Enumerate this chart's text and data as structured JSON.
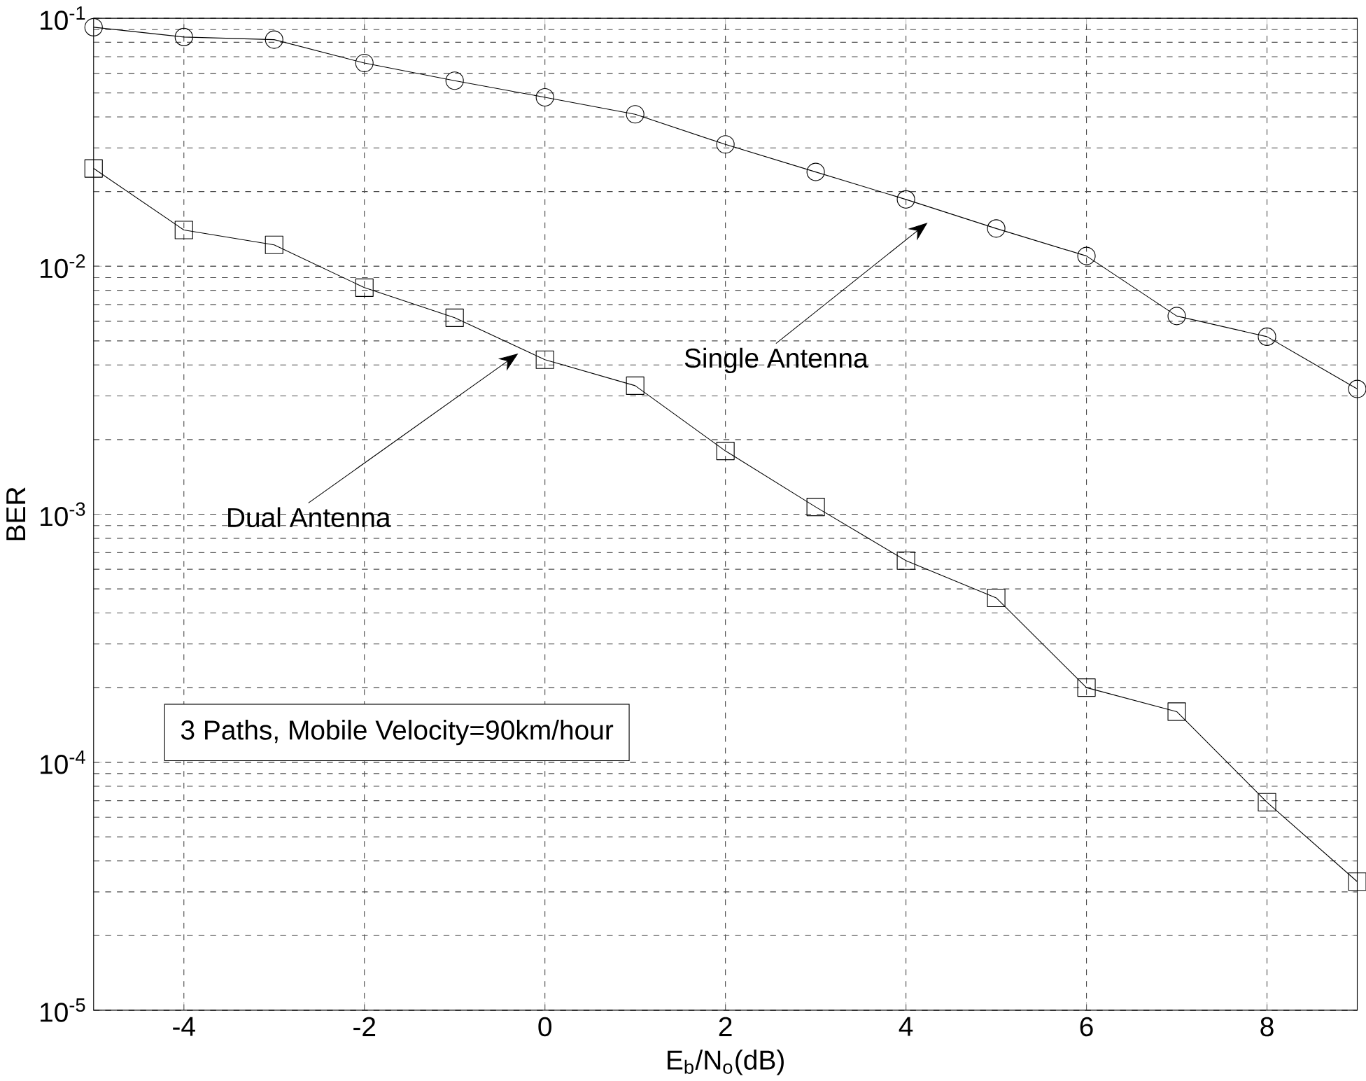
{
  "chart_data": {
    "type": "line",
    "xlabel": "E$_{b}$/N$_{o}$(dB)",
    "ylabel": "BER",
    "x": [
      -5,
      -4,
      -3,
      -2,
      -1,
      0,
      1,
      2,
      3,
      4,
      5,
      6,
      7,
      8,
      9
    ],
    "series": [
      {
        "color": "#000000",
        "marker": "circle",
        "values": [
          0.092,
          0.084,
          0.082,
          0.066,
          0.056,
          0.048,
          0.041,
          0.031,
          0.024,
          0.0186,
          0.0142,
          0.011,
          0.0063,
          0.0052,
          0.0032
        ]
      },
      {
        "color": "#000000",
        "marker": "square",
        "values": [
          0.0248,
          0.014,
          0.0122,
          0.0082,
          0.0062,
          0.0042,
          0.0033,
          0.0018,
          0.00107,
          0.00065,
          0.00046,
          0.0002,
          0.00016,
          6.9e-05,
          3.3e-05
        ]
      }
    ],
    "log": "y",
    "grid": true,
    "line_style": "solid",
    "xlim": [
      -5,
      9
    ],
    "xticks": [
      -4,
      -2,
      0,
      2,
      4,
      6,
      8
    ],
    "ylim": [
      1e-05,
      0.1
    ],
    "yticks": [
      {
        "value": 1e-05,
        "label": "10$^{-5}$"
      },
      {
        "value": 0.0001,
        "label": "10$^{-4}$"
      },
      {
        "value": 0.001,
        "label": "10$^{-3}$"
      },
      {
        "value": 0.01,
        "label": "10$^{-2}$"
      },
      {
        "value": 0.1,
        "label": "10$^{-1}$"
      }
    ],
    "annotations": [
      "Single Antenna",
      "Dual Antenna",
      "3 Paths, Mobile Velocity=90km/hour"
    ]
  }
}
